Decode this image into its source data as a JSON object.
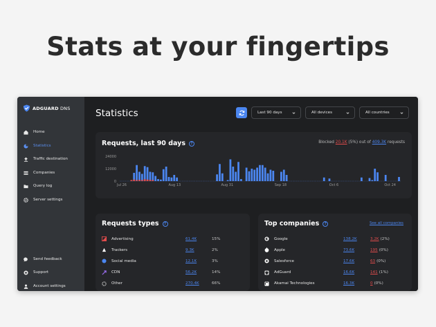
{
  "headline": "Stats at your fingertips",
  "app": {
    "logo": {
      "brand": "ADGUARD",
      "suffix": " DNS"
    },
    "sidebar": {
      "items": [
        {
          "label": "Home",
          "icon": "home-icon"
        },
        {
          "label": "Statistics",
          "icon": "statistics-icon",
          "active": true
        },
        {
          "label": "Traffic destination",
          "icon": "upload-icon"
        },
        {
          "label": "Companies",
          "icon": "companies-icon"
        },
        {
          "label": "Query log",
          "icon": "folder-icon"
        },
        {
          "label": "Server settings",
          "icon": "gear-icon"
        }
      ],
      "bottom_items": [
        {
          "label": "Send feedback",
          "icon": "chat-icon"
        },
        {
          "label": "Support",
          "icon": "support-icon"
        },
        {
          "label": "Account settings",
          "icon": "user-icon"
        }
      ]
    },
    "header": {
      "title": "Statistics",
      "filters": {
        "period": "Last 90 days",
        "devices": "All devices",
        "countries": "All countries"
      }
    },
    "requests_card": {
      "title": "Requests, last 90 days",
      "blocked_prefix": "Blocked ",
      "blocked_count": "20.1K",
      "blocked_mid": " (5%) out of ",
      "total_count": "409.3K",
      "blocked_suffix": " requests"
    },
    "chart_data": {
      "type": "bar",
      "yticks": [
        "24000",
        "12000",
        "0"
      ],
      "ylim": [
        0,
        24000
      ],
      "x_labels": [
        "Jul 26",
        "Aug 13",
        "Aug 31",
        "Sep 18",
        "Oct 6",
        "Oct 24"
      ],
      "series": [
        {
          "values": [
            0,
            0,
            0,
            0,
            800,
            8000,
            15500,
            9000,
            7000,
            14500,
            13500,
            9000,
            8500,
            5000,
            2000,
            1500,
            11500,
            14000,
            4000,
            3500,
            6000,
            3500,
            0,
            0,
            0,
            0,
            0,
            0,
            0,
            0,
            0,
            0,
            0,
            0,
            0,
            0,
            6500,
            16500,
            7500,
            0,
            1000,
            21000,
            14000,
            9000,
            18500,
            2000,
            0,
            13000,
            9500,
            12000,
            11000,
            13000,
            15500,
            15500,
            13000,
            7500,
            11000,
            10000,
            0,
            0,
            9000,
            11000,
            6000,
            0,
            0,
            0,
            0,
            0,
            0,
            0,
            0,
            0,
            0,
            0,
            0,
            0,
            3500,
            0,
            2500,
            0,
            0,
            0,
            0,
            0,
            0,
            0,
            0,
            0,
            0,
            0,
            3500,
            0,
            0,
            3000,
            1000,
            12000,
            8500,
            0,
            0,
            6000,
            0,
            0,
            0,
            0,
            4000
          ]
        },
        {
          "values": [
            0,
            0,
            0,
            0,
            500,
            1500,
            1000,
            1200,
            500,
            1800,
            1500,
            1200,
            500,
            0,
            0,
            0,
            0,
            0,
            0,
            0,
            0,
            0,
            0,
            0,
            0,
            0,
            0,
            0,
            0,
            0,
            0,
            0,
            0,
            0,
            0,
            0,
            0,
            0,
            0,
            0,
            0,
            0,
            0,
            0,
            0,
            0,
            0,
            0,
            0,
            0,
            0,
            0,
            0,
            0,
            0,
            0,
            0,
            0,
            0,
            0,
            0,
            0,
            0,
            0,
            0,
            0,
            0,
            0,
            0,
            0,
            0,
            0,
            0,
            0,
            0,
            0,
            0,
            0,
            0,
            0,
            0,
            0,
            0,
            0,
            0,
            0,
            0,
            0,
            0,
            0,
            0,
            0,
            0,
            0,
            0,
            0,
            0,
            0,
            0,
            0,
            0,
            0,
            0,
            0,
            0
          ]
        }
      ],
      "colors": {
        "requests": "#4b86f0",
        "blocked": "#e24c4c"
      }
    },
    "request_types": {
      "title": "Requests types",
      "rows": [
        {
          "label": "Advertising",
          "count": "61.4K",
          "pct": "15%",
          "icon": "advertising-icon",
          "color": "#e24c4c"
        },
        {
          "label": "Trackers",
          "count": "9.3K",
          "pct": "2%",
          "icon": "trackers-icon",
          "color": "#ffffff"
        },
        {
          "label": "Social media",
          "count": "12.1K",
          "pct": "3%",
          "icon": "social-media-icon",
          "color": "#4b86f0"
        },
        {
          "label": "CDN",
          "count": "56.2K",
          "pct": "14%",
          "icon": "cdn-icon",
          "color": "#9b6cf0"
        },
        {
          "label": "Other",
          "count": "270.4K",
          "pct": "66%",
          "icon": "other-icon",
          "color": "#b0b0b0"
        }
      ]
    },
    "top_companies": {
      "title": "Top companies",
      "see_all": "See all companies",
      "rows": [
        {
          "label": "Google",
          "count": "138.2K",
          "blocked": "3.2K",
          "pct": "(2%)",
          "icon": "google-icon"
        },
        {
          "label": "Apple",
          "count": "73.6K",
          "blocked": "195",
          "pct": "(0%)",
          "icon": "apple-icon"
        },
        {
          "label": "Salesforce",
          "count": "17.6K",
          "blocked": "63",
          "pct": "(0%)",
          "icon": "salesforce-icon"
        },
        {
          "label": "AdGuard",
          "count": "16.6K",
          "blocked": "141",
          "pct": "(1%)",
          "icon": "adguard-icon"
        },
        {
          "label": "Akamai Technologies",
          "count": "16.3K",
          "blocked": "0",
          "pct": "(0%)",
          "icon": "akamai-icon"
        }
      ]
    }
  }
}
